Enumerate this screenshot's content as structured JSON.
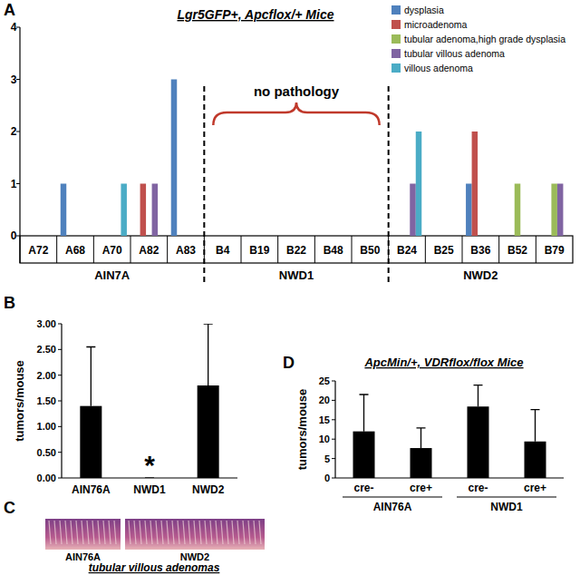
{
  "panel_labels": [
    "A",
    "B",
    "C",
    "D"
  ],
  "chart_data": [
    {
      "type": "bar",
      "title": "Lgr5GFP+, Apcflox/+ Mice",
      "categories": [
        "A72",
        "A68",
        "A70",
        "A82",
        "A83",
        "B4",
        "B19",
        "B22",
        "B48",
        "B50",
        "B24",
        "B25",
        "B36",
        "B52",
        "B79"
      ],
      "series": [
        {
          "name": "dysplasia",
          "color": "#4f81bd",
          "values": [
            0,
            1,
            0,
            0,
            3,
            0,
            0,
            0,
            0,
            0,
            0,
            0,
            1,
            0,
            0
          ]
        },
        {
          "name": "microadenoma",
          "color": "#c0504d",
          "values": [
            0,
            0,
            0,
            1,
            0,
            0,
            0,
            0,
            0,
            0,
            0,
            0,
            2,
            0,
            0
          ]
        },
        {
          "name": "tubular adenoma,high grade dysplasia",
          "color": "#9bbb59",
          "values": [
            0,
            0,
            0,
            0,
            0,
            0,
            0,
            0,
            0,
            0,
            0,
            0,
            0,
            1,
            1
          ]
        },
        {
          "name": "tubular villous adenoma",
          "color": "#8064a2",
          "values": [
            0,
            0,
            0,
            1,
            0,
            0,
            0,
            0,
            0,
            0,
            1,
            0,
            0,
            0,
            1
          ]
        },
        {
          "name": "villous adenoma",
          "color": "#4bacc6",
          "values": [
            0,
            0,
            1,
            0,
            0,
            0,
            0,
            0,
            0,
            0,
            2,
            0,
            0,
            0,
            0
          ]
        }
      ],
      "ylim": [
        0,
        4
      ],
      "yticks": [
        0,
        1,
        2,
        3,
        4
      ],
      "legend": "top-right",
      "groups": [
        {
          "name": "AIN7A",
          "size": 5
        },
        {
          "name": "NWD1",
          "size": 5
        },
        {
          "name": "NWD2",
          "size": 5
        }
      ],
      "annotations": [
        {
          "text": "no pathology",
          "group": "NWD1"
        }
      ]
    },
    {
      "type": "bar",
      "y_label": "tumors/mouse",
      "categories": [
        "AIN76A",
        "NWD1",
        "NWD2"
      ],
      "values": [
        1.4,
        0,
        1.8
      ],
      "errors": [
        1.15,
        0,
        1.2
      ],
      "color": "#000000",
      "ylim": [
        0,
        3
      ],
      "yticks": [
        {
          "value": 0,
          "label": "0.00"
        },
        {
          "value": 0.5,
          "label": "0.50"
        },
        {
          "value": 1,
          "label": "1.00"
        },
        {
          "value": 1.5,
          "label": "1.50"
        },
        {
          "value": 2,
          "label": "2.00"
        },
        {
          "value": 2.5,
          "label": "2.50"
        },
        {
          "value": 3,
          "label": "3.00"
        }
      ],
      "annotations": [
        {
          "text": "*",
          "category": "NWD1"
        }
      ]
    },
    {
      "type": "bar",
      "title": "ApcMin/+, VDRflox/flox Mice",
      "y_label": "tumors/mouse",
      "categories": [
        "cre-",
        "cre+",
        "cre-",
        "cre+"
      ],
      "values": [
        12,
        7.7,
        18.4,
        9.4
      ],
      "errors": [
        9.5,
        5.2,
        5.5,
        8.2
      ],
      "color": "#000000",
      "ylim": [
        0,
        25
      ],
      "yticks": [
        0,
        5,
        10,
        15,
        20,
        25
      ],
      "groups": [
        {
          "name": "AIN76A",
          "size": 2
        },
        {
          "name": "NWD1",
          "size": 2
        }
      ]
    }
  ],
  "panel_c": {
    "images": [
      "AIN76A",
      "NWD2"
    ],
    "caption": "tubular villous adenomas"
  }
}
